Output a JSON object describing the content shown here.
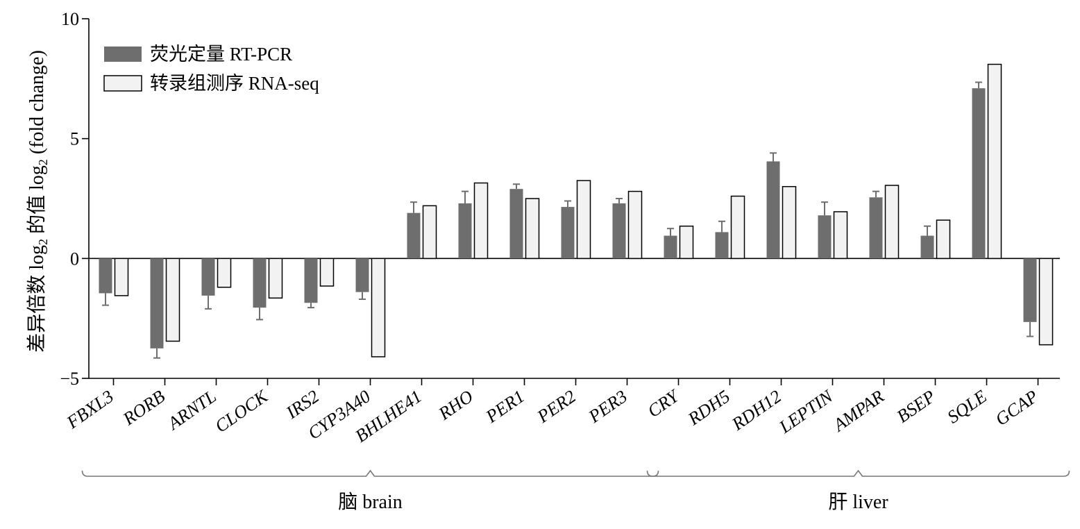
{
  "chart_data": {
    "type": "bar",
    "ylabel_main": "差异倍数 log",
    "ylabel_sub": "2",
    "ylabel_mid": " 的值 log",
    "ylabel_sub2": "2",
    "ylabel_tail": " (fold change)",
    "ylim": [
      -5,
      10
    ],
    "yticks": [
      -5,
      0,
      5,
      10
    ],
    "legend_position": "top-left",
    "categories": [
      "FBXL3",
      "RORB",
      "ARNTL",
      "CLOCK",
      "IRS2",
      "CYP3A40",
      "BHLHE41",
      "RHO",
      "PER1",
      "PER2",
      "PER3",
      "CRY",
      "RDH5",
      "RDH12",
      "LEPTIN",
      "AMPAR",
      "BSEP",
      "SQLE",
      "GCAP"
    ],
    "series": [
      {
        "name": "荧光定量 RT-PCR",
        "color": "#6e6e6e",
        "values": [
          -1.45,
          -3.75,
          -1.55,
          -2.05,
          -1.85,
          -1.4,
          1.9,
          2.3,
          2.9,
          2.15,
          2.3,
          0.95,
          1.1,
          4.05,
          1.8,
          2.55,
          0.95,
          7.1,
          -2.65
        ],
        "errors": [
          0.5,
          0.4,
          0.55,
          0.5,
          0.2,
          0.3,
          0.45,
          0.5,
          0.2,
          0.25,
          0.2,
          0.3,
          0.45,
          0.35,
          0.55,
          0.25,
          0.4,
          0.25,
          0.6
        ]
      },
      {
        "name": "转录组测序 RNA-seq",
        "color": "#f2f2f2",
        "values": [
          -1.55,
          -3.45,
          -1.2,
          -1.65,
          -1.15,
          -4.1,
          2.2,
          3.15,
          2.5,
          3.25,
          2.8,
          1.35,
          2.6,
          3.0,
          1.95,
          3.05,
          1.6,
          8.1,
          -3.6
        ]
      }
    ],
    "groups": [
      {
        "label": "脑 brain",
        "start": 0,
        "end": 10
      },
      {
        "label": "肝 liver",
        "start": 11,
        "end": 18
      }
    ]
  }
}
